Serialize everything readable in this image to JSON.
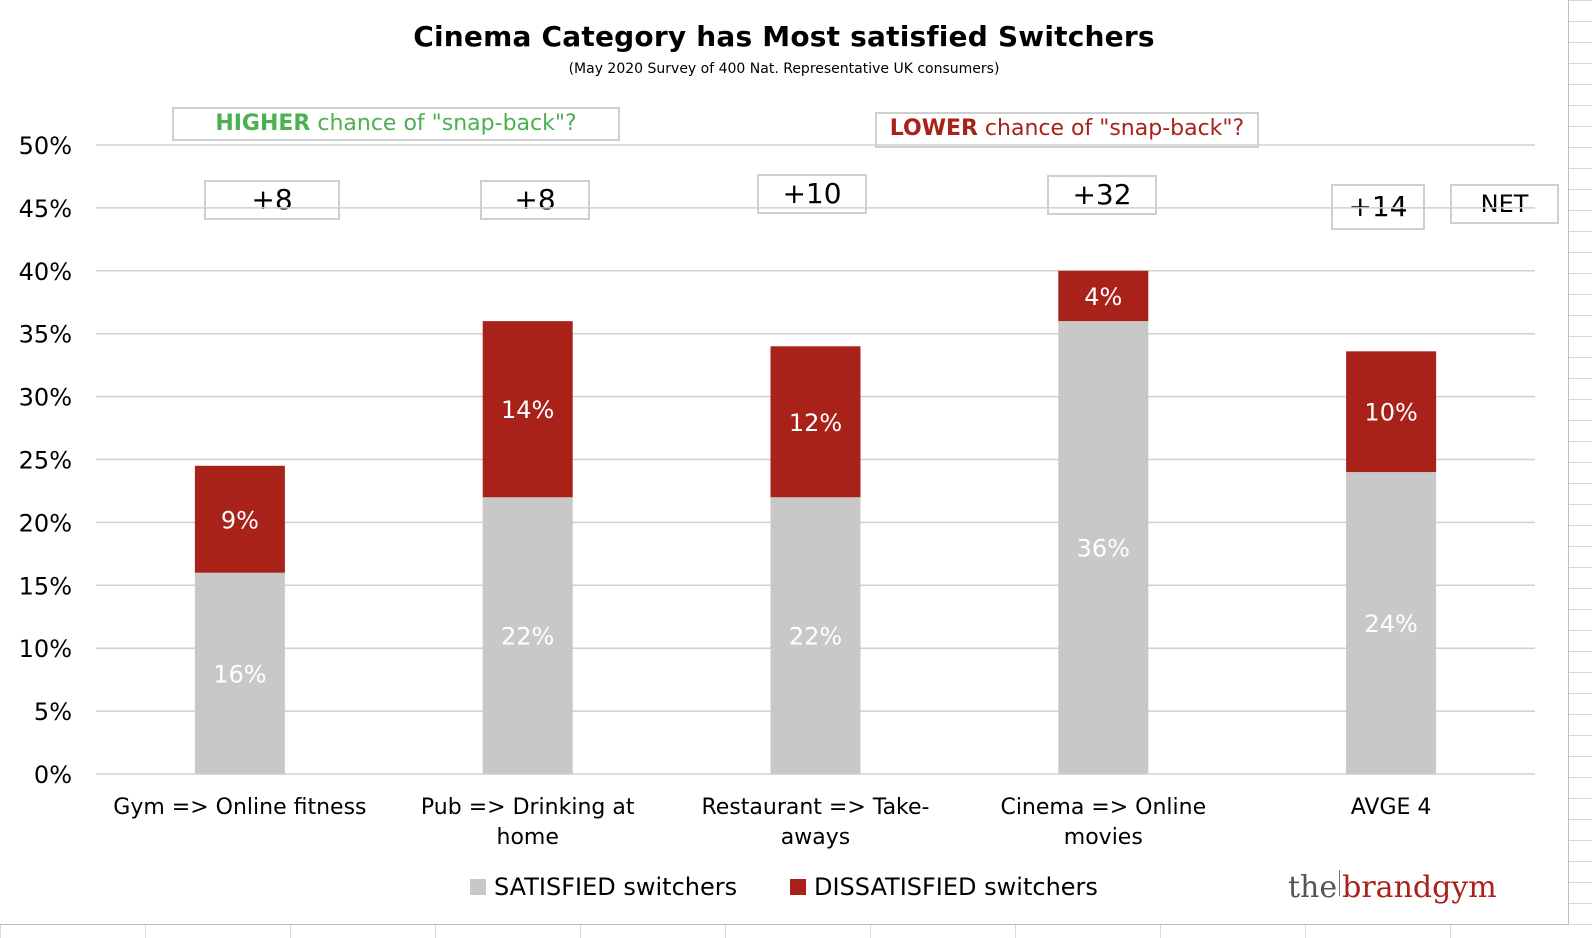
{
  "chart_data": {
    "type": "bar",
    "stacked": true,
    "title": "Cinema Category has Most satisfied  Switchers",
    "subtitle": "(May 2020 Survey of 400 Nat. Representative UK consumers)",
    "categories": [
      [
        "Gym => Online fitness"
      ],
      [
        "Pub =>   Drinking at",
        "home"
      ],
      [
        "Restaurant => Take-",
        "aways"
      ],
      [
        "Cinema => Online",
        "movies"
      ],
      [
        "AVGE 4"
      ]
    ],
    "series": [
      {
        "name": "SATISFIED switchers",
        "color": "#c8c8c8",
        "label_color": "#ffffff",
        "values": [
          16,
          22,
          22,
          36,
          24
        ],
        "labels": [
          "16%",
          "22%",
          "22%",
          "36%",
          "24%"
        ]
      },
      {
        "name": "DISSATISFIED switchers",
        "color": "#a9221a",
        "label_color": "#ffffff",
        "values": [
          8.5,
          14,
          12,
          4,
          9.6
        ],
        "labels": [
          "9%",
          "14%",
          "12%",
          "4%",
          "10%"
        ]
      }
    ],
    "ylim": [
      0,
      50
    ],
    "yticks": [
      0,
      5,
      10,
      15,
      20,
      25,
      30,
      35,
      40,
      45,
      50
    ],
    "ytick_labels": [
      "0%",
      "5%",
      "10%",
      "15%",
      "20%",
      "25%",
      "30%",
      "35%",
      "40%",
      "45%",
      "50%"
    ],
    "grid": true,
    "legend": "bottom",
    "net_values": [
      "+8",
      "+8",
      "+10",
      "+32",
      "+14"
    ],
    "net_label": "NET"
  },
  "annotations": {
    "higher_bold": "HIGHER",
    "higher_rest": " chance of \"snap-back\"?",
    "lower_bold": "LOWER",
    "lower_rest": " chance of \"snap-back\"?"
  },
  "logo": {
    "the": "the",
    "brand": "brandgym"
  },
  "colors": {
    "satisfied": "#c8c8c8",
    "dissatisfied": "#a9221a",
    "higher_text": "#4caf50",
    "lower_text": "#a9221a"
  }
}
